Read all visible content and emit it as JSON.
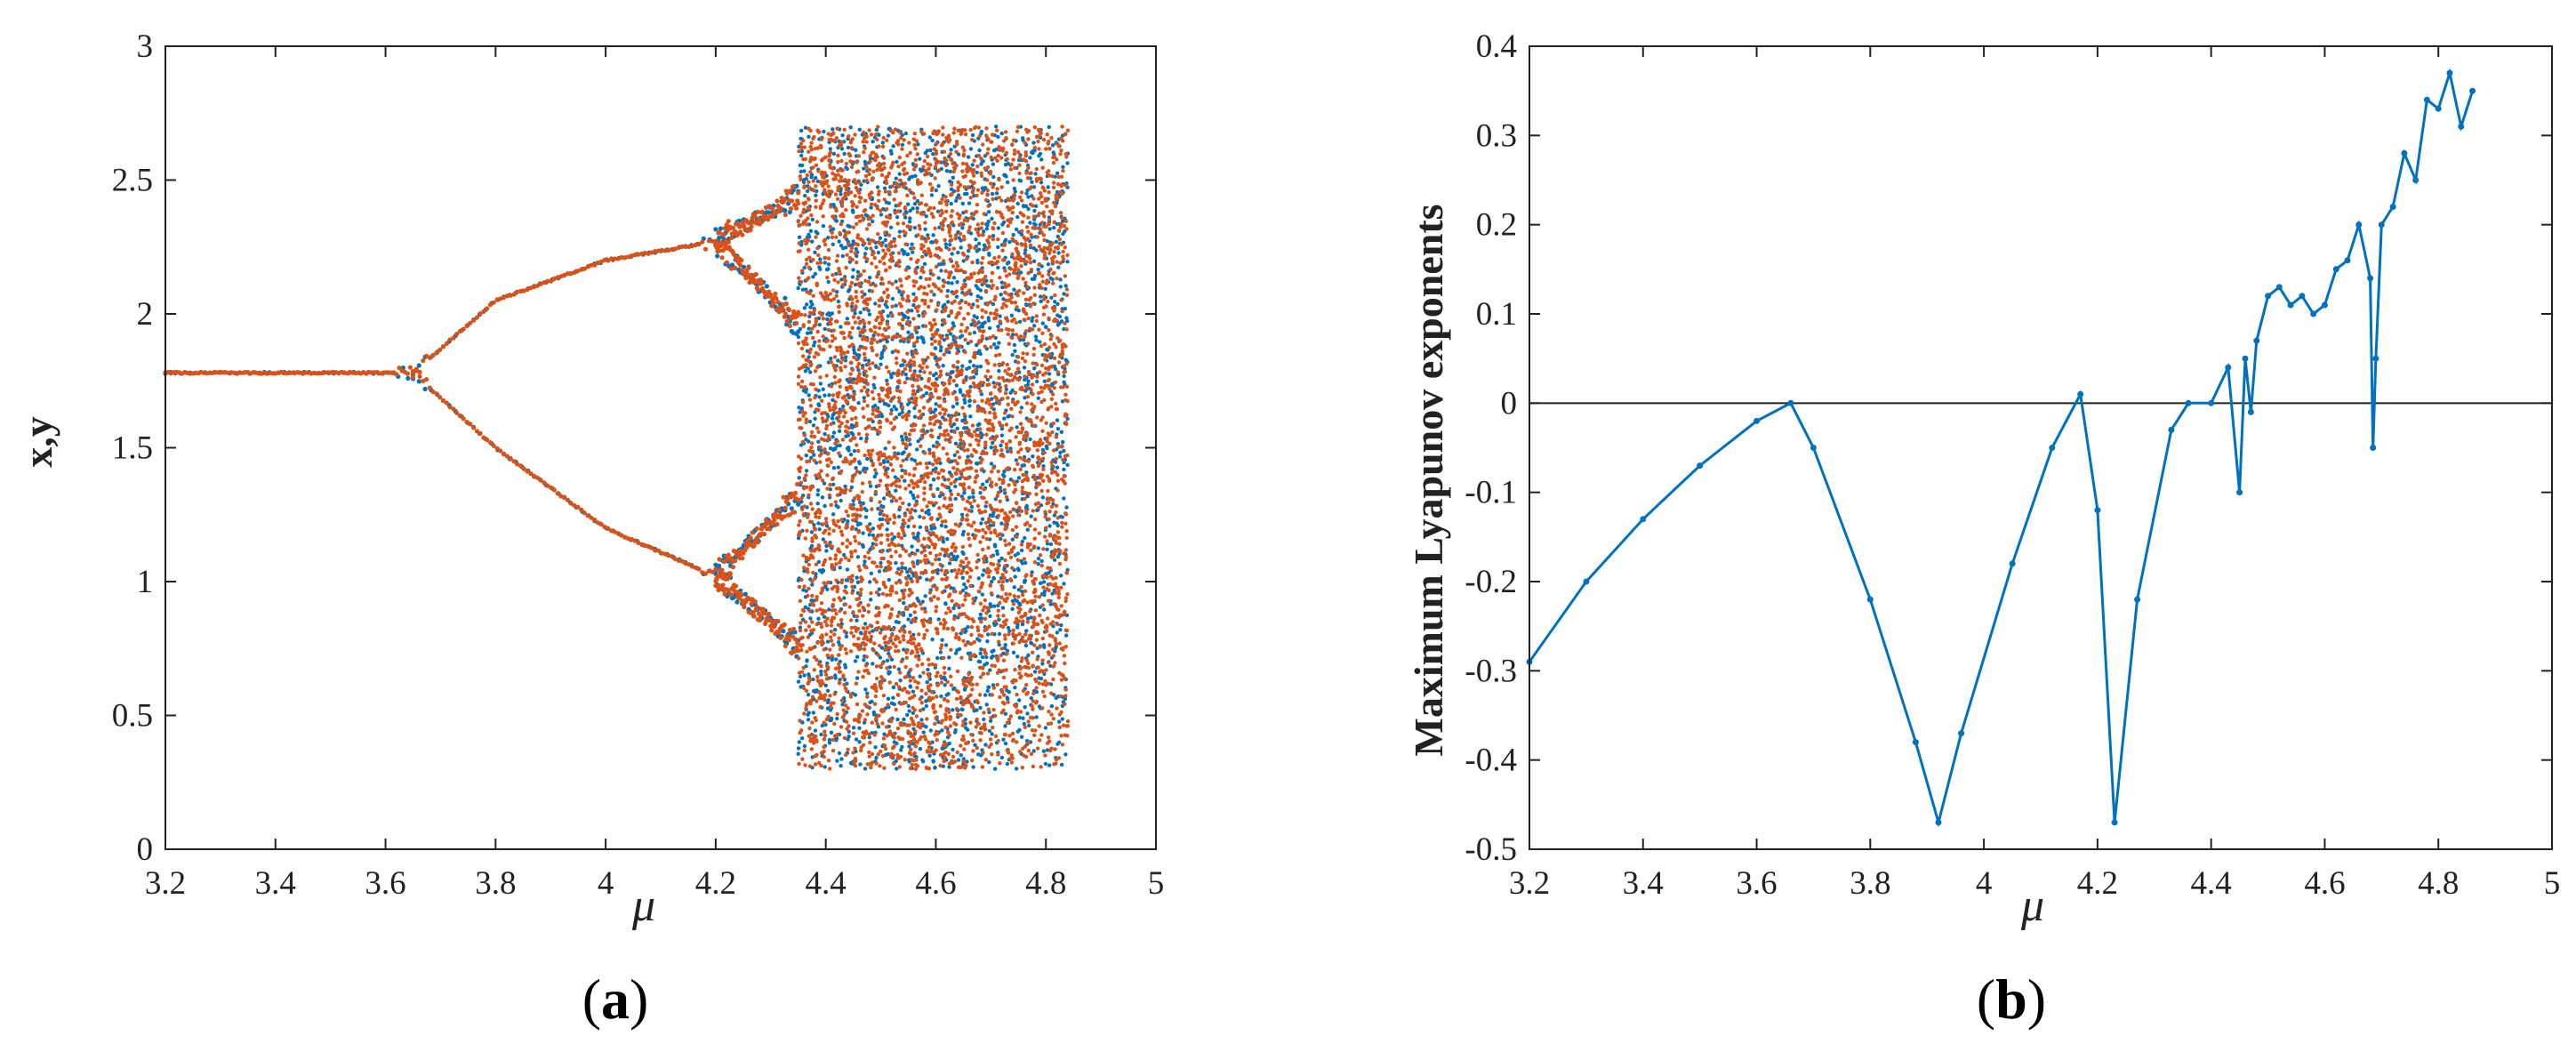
{
  "colors": {
    "orange": "#D95319",
    "blue": "#0072BD",
    "axis": "#222222"
  },
  "chart_data": [
    {
      "type": "scatter",
      "panel_label": "a",
      "xlabel": "μ",
      "ylabel": "x,y",
      "xlim": [
        3.2,
        5
      ],
      "ylim": [
        0,
        3
      ],
      "x_ticks": [
        "3.2",
        "3.4",
        "3.6",
        "3.8",
        "4",
        "4.2",
        "4.4",
        "4.6",
        "4.8",
        "5"
      ],
      "y_ticks": [
        "0",
        "0.5",
        "1",
        "1.5",
        "2",
        "2.5",
        "3"
      ],
      "grid": false,
      "series": [
        {
          "color": "#0072BD",
          "branches": [
            {
              "mu": [
                3.2,
                3.6,
                3.65
              ],
              "values": [
                1.78,
                1.78,
                1.78
              ]
            },
            {
              "mu": [
                3.65,
                3.8,
                4.0,
                4.2
              ],
              "values": [
                1.78,
                2.05,
                2.2,
                2.27
              ]
            },
            {
              "mu": [
                3.65,
                3.8,
                4.0,
                4.2
              ],
              "values": [
                1.78,
                1.5,
                1.2,
                1.02
              ]
            },
            {
              "mu": [
                4.2,
                4.35
              ],
              "values": [
                2.27,
                2.44
              ]
            },
            {
              "mu": [
                4.2,
                4.35
              ],
              "values": [
                2.27,
                1.96
              ]
            },
            {
              "mu": [
                4.2,
                4.35
              ],
              "values": [
                1.02,
                1.32
              ]
            },
            {
              "mu": [
                4.2,
                4.35
              ],
              "values": [
                1.02,
                0.76
              ]
            },
            {
              "mu": [
                4.35,
                4.84
              ],
              "values": [
                2.5,
                2.4
              ],
              "chaotic_range": [
                0.3,
                2.7
              ]
            }
          ]
        },
        {
          "color": "#D95319",
          "branches": [
            {
              "mu": [
                3.2,
                3.6,
                3.65
              ],
              "values": [
                1.78,
                1.78,
                1.78
              ]
            },
            {
              "mu": [
                3.65,
                3.8,
                4.0,
                4.2
              ],
              "values": [
                1.78,
                2.05,
                2.2,
                2.27
              ]
            },
            {
              "mu": [
                3.65,
                3.8,
                4.0,
                4.2
              ],
              "values": [
                1.78,
                1.5,
                1.2,
                1.02
              ]
            },
            {
              "mu": [
                4.2,
                4.35
              ],
              "values": [
                2.27,
                2.44
              ]
            },
            {
              "mu": [
                4.2,
                4.35
              ],
              "values": [
                2.27,
                1.96
              ]
            },
            {
              "mu": [
                4.2,
                4.35
              ],
              "values": [
                1.02,
                1.32
              ]
            },
            {
              "mu": [
                4.2,
                4.35
              ],
              "values": [
                1.02,
                0.76
              ]
            },
            {
              "mu": [
                4.35,
                4.84
              ],
              "values": [
                2.5,
                2.4
              ],
              "chaotic_range": [
                0.3,
                2.7
              ]
            }
          ]
        }
      ]
    },
    {
      "type": "line",
      "panel_label": "b",
      "xlabel": "μ",
      "ylabel": "Maximum Lyapunov exponents",
      "xlim": [
        3.2,
        5
      ],
      "ylim": [
        -0.5,
        0.4
      ],
      "x_ticks": [
        "3.2",
        "3.4",
        "3.6",
        "3.8",
        "4",
        "4.2",
        "4.4",
        "4.6",
        "4.8",
        "5"
      ],
      "y_ticks": [
        "-0.5",
        "-0.4",
        "-0.3",
        "-0.2",
        "-0.1",
        "0",
        "0.1",
        "0.2",
        "0.3",
        "0.4"
      ],
      "grid": false,
      "reference_line": 0,
      "series": [
        {
          "color": "#0072BD",
          "x": [
            3.2,
            3.3,
            3.4,
            3.5,
            3.6,
            3.66,
            3.7,
            3.8,
            3.88,
            3.92,
            3.96,
            4.05,
            4.12,
            4.17,
            4.2,
            4.23,
            4.27,
            4.33,
            4.36,
            4.4,
            4.43,
            4.45,
            4.46,
            4.47,
            4.48,
            4.5,
            4.52,
            4.54,
            4.56,
            4.58,
            4.6,
            4.62,
            4.64,
            4.66,
            4.68,
            4.685,
            4.69,
            4.7,
            4.72,
            4.74,
            4.76,
            4.78,
            4.8,
            4.82,
            4.84,
            4.86
          ],
          "values": [
            -0.29,
            -0.2,
            -0.13,
            -0.07,
            -0.02,
            0.0,
            -0.05,
            -0.22,
            -0.38,
            -0.47,
            -0.37,
            -0.18,
            -0.05,
            0.01,
            -0.12,
            -0.47,
            -0.22,
            -0.03,
            0.0,
            0.0,
            0.04,
            -0.1,
            0.05,
            -0.01,
            0.07,
            0.12,
            0.13,
            0.11,
            0.12,
            0.1,
            0.11,
            0.15,
            0.16,
            0.2,
            0.14,
            -0.05,
            0.05,
            0.2,
            0.22,
            0.28,
            0.25,
            0.34,
            0.33,
            0.37,
            0.31,
            0.35
          ]
        }
      ]
    }
  ]
}
